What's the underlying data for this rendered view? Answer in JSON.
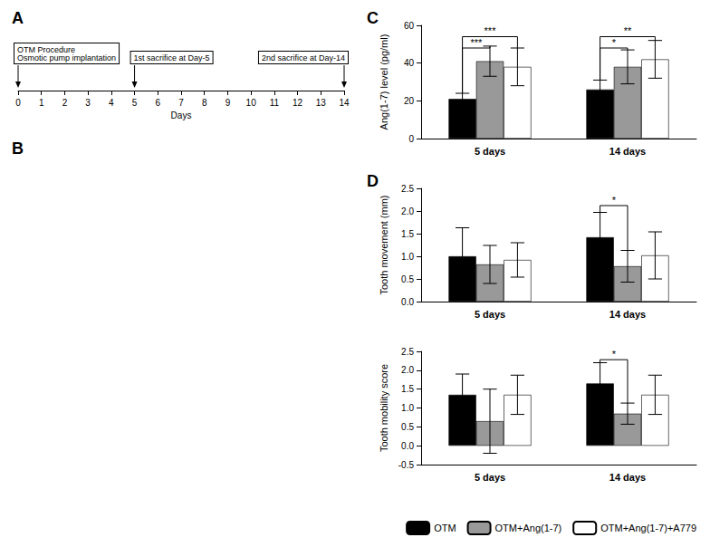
{
  "chart_data": [
    {
      "type": "timeline",
      "title": "A",
      "xlabel": "Days",
      "xlim": [
        0,
        14
      ],
      "xticks": [
        0,
        1,
        2,
        3,
        4,
        5,
        6,
        7,
        8,
        9,
        10,
        11,
        12,
        13,
        14
      ],
      "annotations": [
        {
          "x": 0,
          "text": "OTM Procedure\nOsmotic pump implantation"
        },
        {
          "x": 5,
          "text": "1st sacrifice at Day-5"
        },
        {
          "x": 14,
          "text": "2nd sacrifice at Day-14"
        }
      ]
    },
    {
      "type": "image_panel",
      "title": "B"
    },
    {
      "type": "bar",
      "title": "C",
      "ylabel": "Ang(1-7) level (pg/ml)",
      "categories": [
        "5 days",
        "14 days"
      ],
      "series": [
        {
          "name": "OTM",
          "color": "#000000",
          "values": [
            21,
            26
          ],
          "errors": [
            3,
            5
          ]
        },
        {
          "name": "OTM+Ang(1-7)",
          "color": "#999999",
          "values": [
            41,
            38
          ],
          "errors": [
            8,
            9
          ]
        },
        {
          "name": "OTM+Ang(1-7)+A779",
          "color": "#ffffff",
          "values": [
            38,
            42
          ],
          "errors": [
            10,
            10
          ]
        }
      ],
      "ylim": [
        0,
        60
      ],
      "yticks": [
        0,
        20,
        40,
        60
      ],
      "grid": false,
      "annotations": [
        {
          "text": "***",
          "category": "5 days",
          "from": "OTM",
          "to": "OTM+Ang(1-7)",
          "y": 48
        },
        {
          "text": "***",
          "category": "5 days",
          "from": "OTM",
          "to": "OTM+Ang(1-7)+A779",
          "y": 54
        },
        {
          "text": "*",
          "category": "14 days",
          "from": "OTM",
          "to": "OTM+Ang(1-7)",
          "y": 48
        },
        {
          "text": "**",
          "category": "14 days",
          "from": "OTM",
          "to": "OTM+Ang(1-7)+A779",
          "y": 54
        }
      ]
    },
    {
      "type": "bar",
      "title": "D",
      "ylabel": "Tooth movement (mm)",
      "categories": [
        "5 days",
        "14 days"
      ],
      "series": [
        {
          "name": "OTM",
          "color": "#000000",
          "values": [
            1.0,
            1.42
          ],
          "errors": [
            0.63,
            0.55
          ]
        },
        {
          "name": "OTM+Ang(1-7)",
          "color": "#999999",
          "values": [
            0.82,
            0.78
          ],
          "errors": [
            0.42,
            0.35
          ]
        },
        {
          "name": "OTM+Ang(1-7)+A779",
          "color": "#ffffff",
          "values": [
            0.92,
            1.02
          ],
          "errors": [
            0.38,
            0.52
          ]
        }
      ],
      "ylim": [
        0,
        2.5
      ],
      "yticks": [
        {
          "value": 0,
          "label": "0.0"
        },
        0.5,
        {
          "value": 1,
          "label": "1.0"
        },
        1.5,
        {
          "value": 2,
          "label": "2.0"
        },
        2.5
      ],
      "grid": false,
      "annotations": [
        {
          "text": "*",
          "category": "14 days",
          "from": "OTM",
          "to": "OTM+Ang(1-7)",
          "y": 2.12
        }
      ]
    },
    {
      "type": "bar",
      "ylabel": "Tooth mobility score",
      "categories": [
        "5 days",
        "14 days"
      ],
      "series": [
        {
          "name": "OTM",
          "color": "#000000",
          "values": [
            1.35,
            1.65
          ],
          "errors": [
            0.55,
            0.55
          ]
        },
        {
          "name": "OTM+Ang(1-7)",
          "color": "#999999",
          "values": [
            0.65,
            0.85
          ],
          "errors": [
            0.85,
            0.28
          ]
        },
        {
          "name": "OTM+Ang(1-7)+A779",
          "color": "#ffffff",
          "values": [
            1.35,
            1.35
          ],
          "errors": [
            0.52,
            0.52
          ]
        }
      ],
      "ylim": [
        -0.5,
        2.5
      ],
      "yticks": [
        -0.5,
        {
          "value": 0,
          "label": "0.0"
        },
        0.5,
        {
          "value": 1,
          "label": "1.0"
        },
        1.5,
        {
          "value": 2,
          "label": "2.0"
        },
        2.5
      ],
      "grid": false,
      "legend": "lower right",
      "annotations": [
        {
          "text": "*",
          "category": "14 days",
          "from": "OTM",
          "to": "OTM+Ang(1-7)",
          "y": 2.28
        }
      ]
    }
  ]
}
